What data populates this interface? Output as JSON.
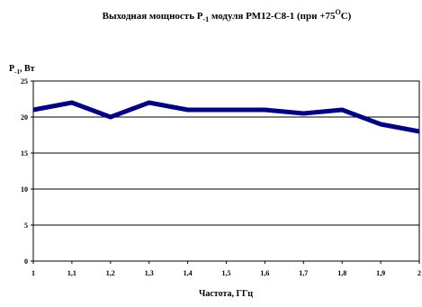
{
  "chart_data": {
    "type": "line",
    "title_main": "Выходная мощность P",
    "title_sub": "-1",
    "title_rest": " модуля РМ12-С8-1 (при +75",
    "title_sup": "O",
    "title_end": "C)",
    "ylabel_main": "P",
    "ylabel_sub": "-1",
    "ylabel_rest": ", Вт",
    "xlabel": "Частота, ГГц",
    "x": [
      1.0,
      1.1,
      1.2,
      1.3,
      1.4,
      1.5,
      1.6,
      1.7,
      1.8,
      1.9,
      2.0
    ],
    "x_tick_labels": [
      "1",
      "1,1",
      "1,2",
      "1,3",
      "1,4",
      "1,5",
      "1,6",
      "1,7",
      "1,8",
      "1,9",
      "2"
    ],
    "y_ticks": [
      0,
      5,
      10,
      15,
      20,
      25
    ],
    "y_tick_labels": [
      "0",
      "5",
      "10",
      "15",
      "20",
      "25"
    ],
    "series": [
      {
        "values": [
          21.0,
          22.0,
          20.0,
          22.0,
          21.0,
          21.0,
          21.0,
          20.5,
          21.0,
          19.0,
          18.0
        ],
        "color": "#000080"
      }
    ],
    "xlim": [
      1.0,
      2.0
    ],
    "ylim": [
      0,
      25
    ],
    "grid": "horizontal"
  }
}
